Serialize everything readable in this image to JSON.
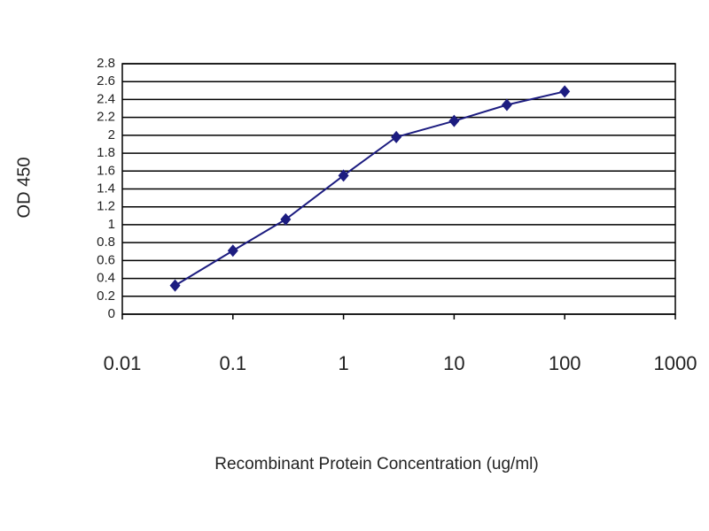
{
  "chart_data": {
    "type": "line",
    "x_label": "Recombinant Protein Concentration (ug/ml)",
    "y_label": "OD 450",
    "x": [
      0.03,
      0.1,
      0.3,
      1,
      3,
      10,
      30,
      100
    ],
    "series": [
      {
        "color": "#1c1c80",
        "values": [
          0.32,
          0.71,
          1.06,
          1.55,
          1.98,
          2.16,
          2.34,
          2.49
        ]
      }
    ],
    "xscale": "log",
    "xlim": [
      0.01,
      1000
    ],
    "xticks": [
      0.01,
      0.1,
      1,
      10,
      100,
      1000
    ],
    "ylim": [
      0,
      2.8
    ],
    "yticks": [
      0,
      0.2,
      0.4,
      0.6,
      0.8,
      1,
      1.2,
      1.4,
      1.6,
      1.8,
      2,
      2.2,
      2.4,
      2.6,
      2.8
    ],
    "grid": true
  }
}
